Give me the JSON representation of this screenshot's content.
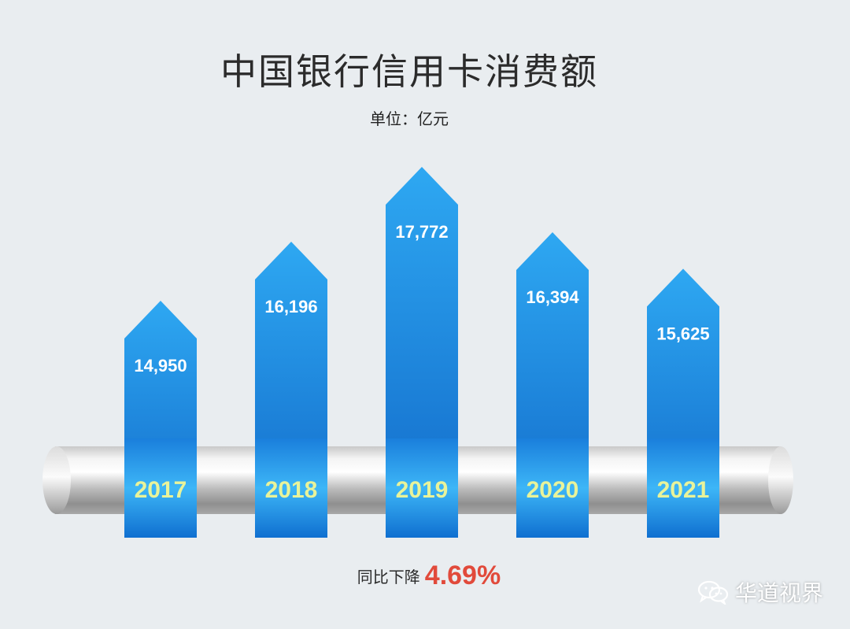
{
  "colors": {
    "bar_light": "#2ea8f2",
    "bar_dark": "#1168c8",
    "year_text": "#e8f39a",
    "highlight": "#e14a3b",
    "background": "#e9edf0"
  },
  "chart_data": {
    "type": "bar",
    "title": "中国银行信用卡消费额",
    "unit_label": "单位：亿元",
    "categories": [
      "2017",
      "2018",
      "2019",
      "2020",
      "2021"
    ],
    "values": [
      14950,
      16196,
      17772,
      16394,
      15625
    ],
    "value_labels": [
      "14,950",
      "16,196",
      "17,772",
      "16,394",
      "15,625"
    ],
    "xlabel": "",
    "ylabel": ""
  },
  "note": {
    "prefix": "同比下降",
    "percent": "4.69%"
  },
  "watermark": {
    "text": "华道视界",
    "icon": "wechat-icon"
  }
}
